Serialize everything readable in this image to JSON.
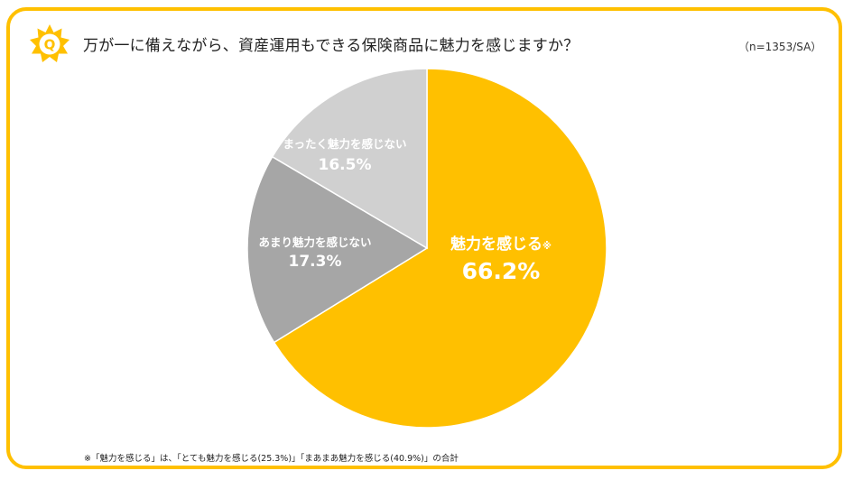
{
  "header": {
    "q_letter": "Q",
    "question": "万が一に備えながら、資産運用もできる保険商品に魅力を感じますか？",
    "sample": "（n=1353/SA）"
  },
  "colors": {
    "accent": "#FFC000",
    "slice_attractive": "#FFC000",
    "slice_somewhat_not": "#A6A6A6",
    "slice_not_at_all": "#D0D0D0",
    "label_text": "#FFFFFF"
  },
  "chart_data": {
    "type": "pie",
    "title": "万が一に備えながら、資産運用もできる保険商品に魅力を感じますか？",
    "slices": [
      {
        "label": "魅力を感じる",
        "mark": "※",
        "value": 66.2,
        "display": "66.2%"
      },
      {
        "label": "あまり魅力を感じない",
        "value": 17.3,
        "display": "17.3%"
      },
      {
        "label": "まったく魅力を感じない",
        "value": 16.5,
        "display": "16.5%"
      }
    ]
  },
  "footnote": "※「魅力を感じる」は、「とても魅力を感じる(25.3%)」「まあまあ魅力を感じる(40.9%)」の合計"
}
